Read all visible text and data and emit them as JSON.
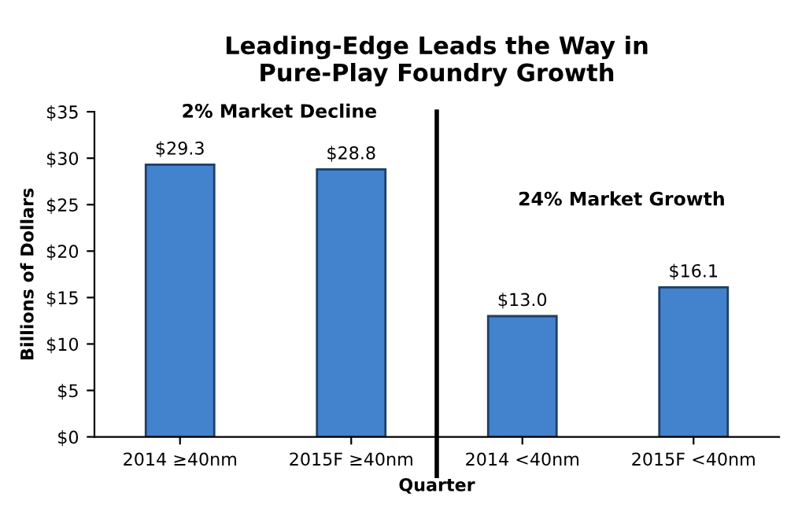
{
  "chart_data": {
    "type": "bar",
    "title": "Leading-Edge Leads the Way in\nPure-Play Foundry Growth",
    "xlabel": "Quarter",
    "ylabel": "Billions of Dollars",
    "categories": [
      "2014 ≥40nm",
      "2015F ≥40nm",
      "2014 <40nm",
      "2015F <40nm"
    ],
    "values": [
      29.3,
      28.8,
      13.0,
      16.1
    ],
    "color": "#4382cc",
    "value_labels": [
      "$29.3",
      "$28.8",
      "$13.0",
      "$16.1"
    ],
    "ylim": [
      0,
      35
    ],
    "yticks": [
      {
        "value": 0,
        "label": "$0"
      },
      {
        "value": 5,
        "label": "$5"
      },
      {
        "value": 10,
        "label": "$10"
      },
      {
        "value": 15,
        "label": "$15"
      },
      {
        "value": 20,
        "label": "$20"
      },
      {
        "value": 25,
        "label": "$25"
      },
      {
        "value": 30,
        "label": "$30"
      },
      {
        "value": 35,
        "label": "$35"
      }
    ],
    "annotations": [
      "2% Market Decline",
      "24% Market Growth"
    ],
    "grid": false,
    "legend": false
  }
}
